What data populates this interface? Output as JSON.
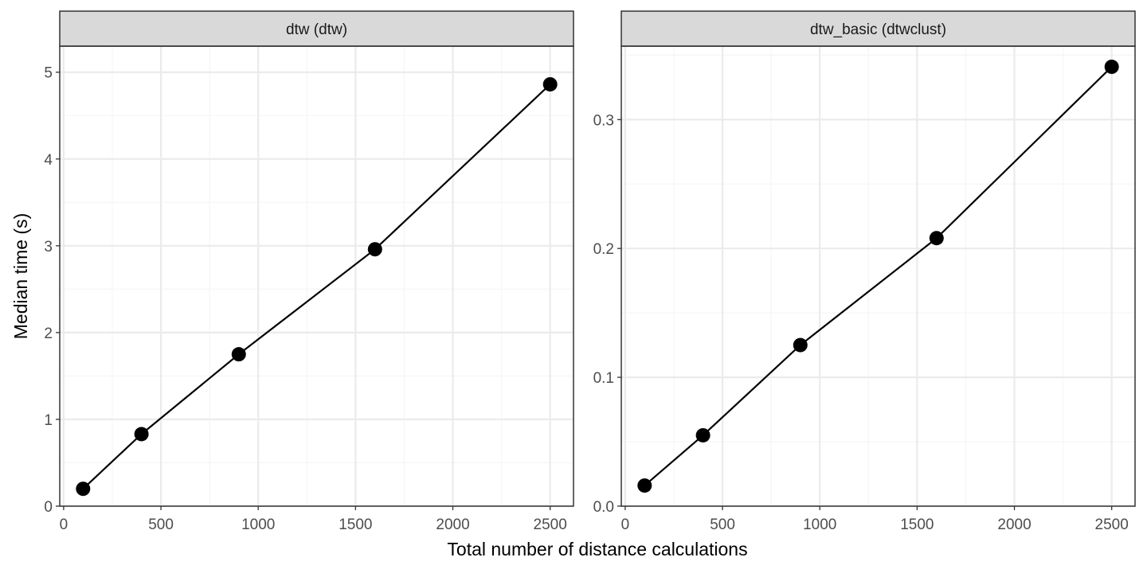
{
  "figure": {
    "xlabel": "Total number of distance calculations",
    "ylabel": "Median time (s)"
  },
  "colors": {
    "strip_fill": "#d9d9d9",
    "frame": "#333333",
    "grid_major": "#ebebeb",
    "grid_minor": "#f5f5f5",
    "tick_text": "#4d4d4d",
    "series": "#000000"
  },
  "chart_data": [
    {
      "type": "line",
      "panel": "dtw (dtw)",
      "x": [
        100,
        400,
        900,
        1600,
        2500
      ],
      "series": [
        {
          "values": [
            0.2,
            0.83,
            1.75,
            2.96,
            4.86
          ]
        }
      ],
      "markers": true,
      "xlim": [
        -20,
        2620
      ],
      "ylim": [
        0,
        5.3
      ],
      "xticks": [
        0,
        500,
        1000,
        1500,
        2000,
        2500
      ],
      "xtick_labels": [
        "0",
        "500",
        "1000",
        "1500",
        "2000",
        "2500"
      ],
      "yticks": [
        0,
        1,
        2,
        3,
        4,
        5
      ],
      "ytick_labels": [
        "0",
        "1",
        "2",
        "3",
        "4",
        "5"
      ],
      "grid": true
    },
    {
      "type": "line",
      "panel": "dtw_basic (dtwclust)",
      "x": [
        100,
        400,
        900,
        1600,
        2500
      ],
      "series": [
        {
          "values": [
            0.016,
            0.055,
            0.125,
            0.208,
            0.341
          ]
        }
      ],
      "markers": true,
      "xlim": [
        -20,
        2620
      ],
      "ylim": [
        0,
        0.357
      ],
      "xticks": [
        0,
        500,
        1000,
        1500,
        2000,
        2500
      ],
      "xtick_labels": [
        "0",
        "500",
        "1000",
        "1500",
        "2000",
        "2500"
      ],
      "yticks": [
        0,
        0.1,
        0.2,
        0.3
      ],
      "ytick_labels": [
        "0.0",
        "0.1",
        "0.2",
        "0.3"
      ],
      "grid": true
    }
  ]
}
